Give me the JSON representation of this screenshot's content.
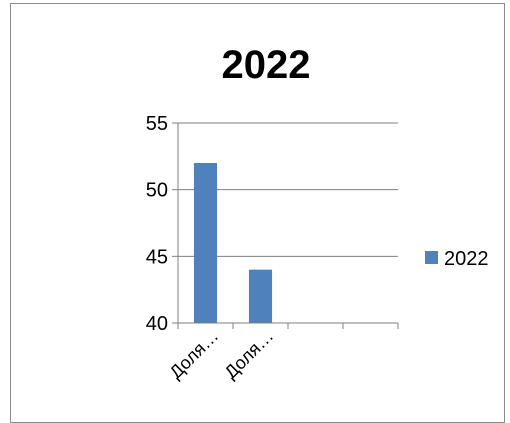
{
  "chart_data": {
    "type": "bar",
    "title": "2022",
    "categories": [
      "Доля…",
      "Доля…",
      "",
      ""
    ],
    "series": [
      {
        "name": "2022",
        "values": [
          52,
          44,
          null,
          null
        ]
      }
    ],
    "ylim": [
      40,
      55
    ],
    "yticks": [
      40,
      45,
      50,
      55
    ],
    "grid": true,
    "legend": "right",
    "colors": {
      "series": "#4f81bd",
      "grid": "#808080",
      "border": "#8c8c8c"
    }
  }
}
